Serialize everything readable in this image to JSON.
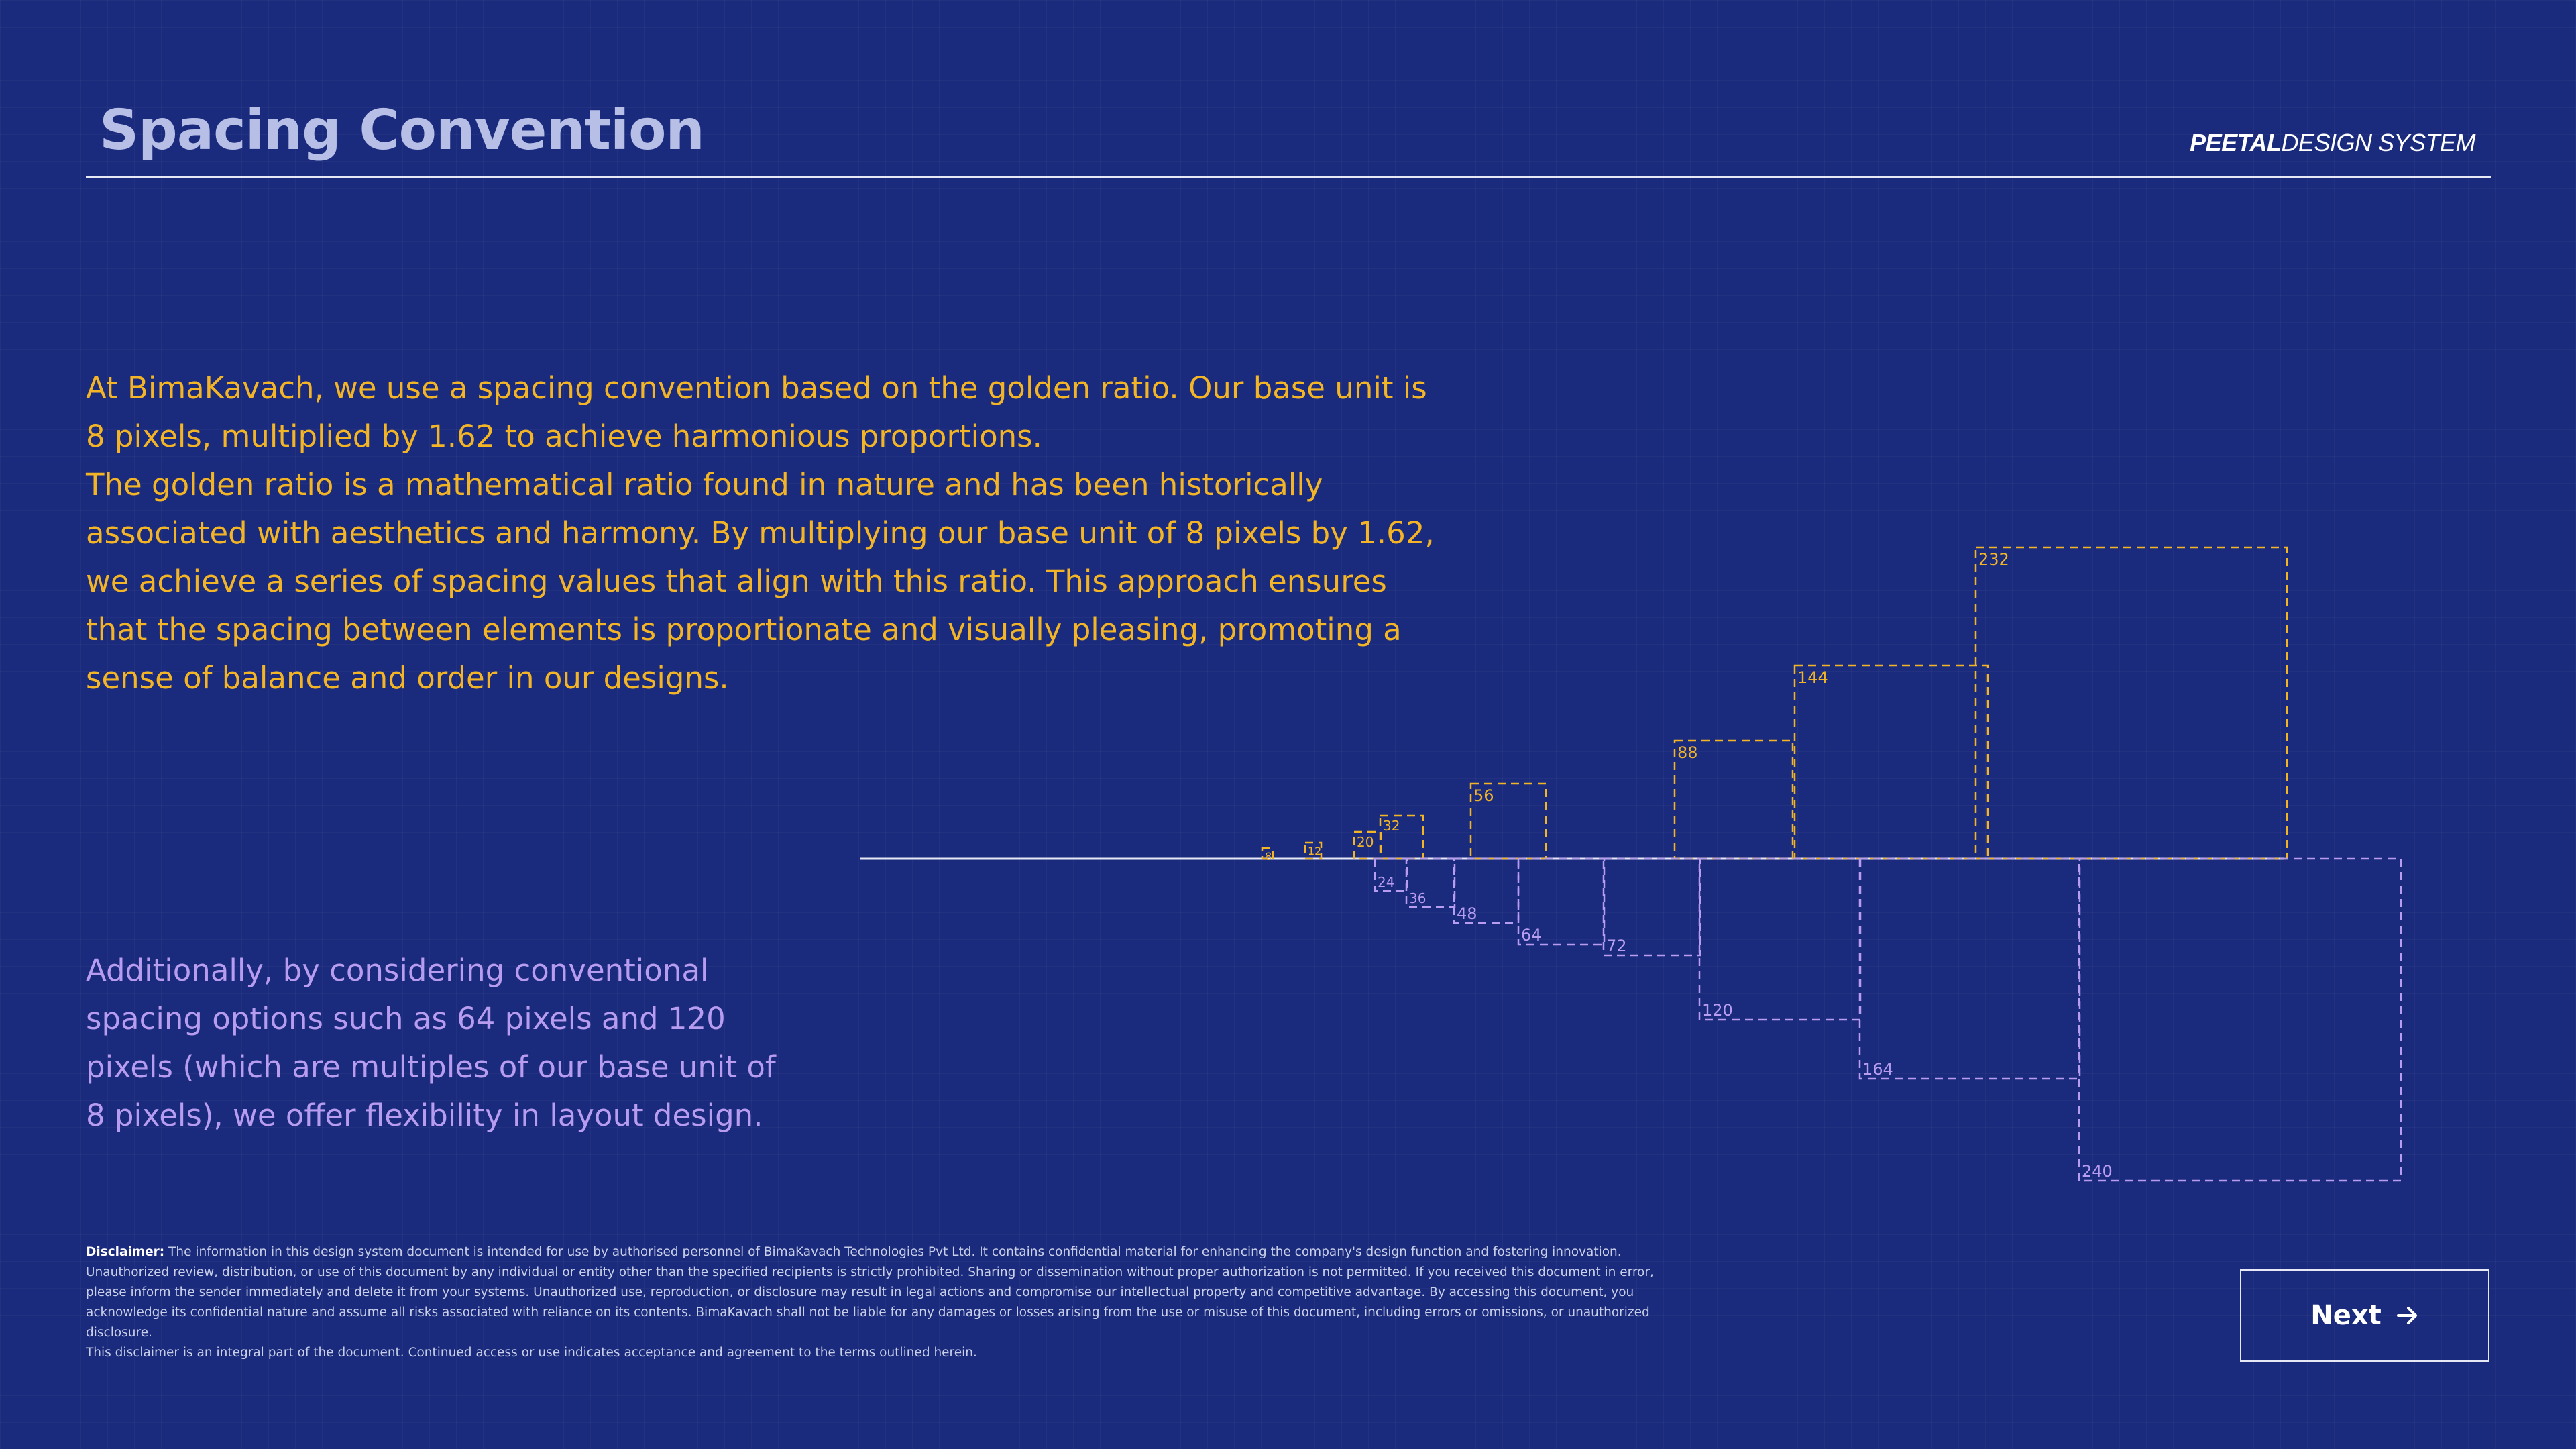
{
  "header": {
    "title": "Spacing Convention",
    "brand_strong": "PEETAL",
    "brand_rest": "DESIGN SYSTEM"
  },
  "intro": {
    "paragraph_1": "At BimaKavach, we use a spacing convention based on the golden ratio. Our base unit is 8 pixels, multiplied by 1.62 to achieve harmonious proportions.",
    "paragraph_2": "The golden ratio is a mathematical ratio found in nature and has been historically associated with aesthetics and harmony. By multiplying our base unit of 8 pixels by 1.62, we achieve a series of spacing values that align with this ratio. This approach ensures that the spacing between elements is proportionate and visually pleasing, promoting a sense of balance and order in our designs."
  },
  "additional": {
    "text": "Additionally, by considering conventional spacing options such as 64 pixels and 120 pixels (which are multiples of our base unit of 8 pixels), we offer flexibility in layout design."
  },
  "disclaimer": {
    "lead": "Disclaimer:",
    "body": "The information in this design system document is intended for use by authorised personnel of BimaKavach Technologies Pvt Ltd. It contains confidential material for enhancing the company's design function and fostering innovation. Unauthorized review, distribution, or use of this document by any individual or entity other than the specified recipients is strictly prohibited. Sharing or dissemination without proper authorization is not permitted. If you received this document in error, please inform the sender immediately and delete it from your systems. Unauthorized use, reproduction, or disclosure may result in legal actions and compromise our intellectual property and competitive advantage. By accessing this document, you acknowledge its confidential nature and assume all risks associated with reliance on its contents. BimaKavach shall not be liable for any damages or losses arising from the use or misuse of this document, including errors or omissions, or unauthorized disclosure.",
    "footer": "This disclaimer is an integral part of the document. Continued access or use indicates acceptance and agreement to the terms outlined herein."
  },
  "nav": {
    "next_label": "Next",
    "next_icon": "arrow-right-icon"
  },
  "colors": {
    "background": "#1a2a7c",
    "golden": "#f3b526",
    "conventional": "#b89cf0",
    "title": "#b7bfe6",
    "line": "#e6e9f5"
  },
  "diagram": {
    "golden_ratio_values": [
      8,
      12,
      20,
      32,
      56,
      88,
      144,
      232
    ],
    "conventional_values": [
      24,
      36,
      48,
      64,
      72,
      120,
      164,
      240
    ]
  }
}
